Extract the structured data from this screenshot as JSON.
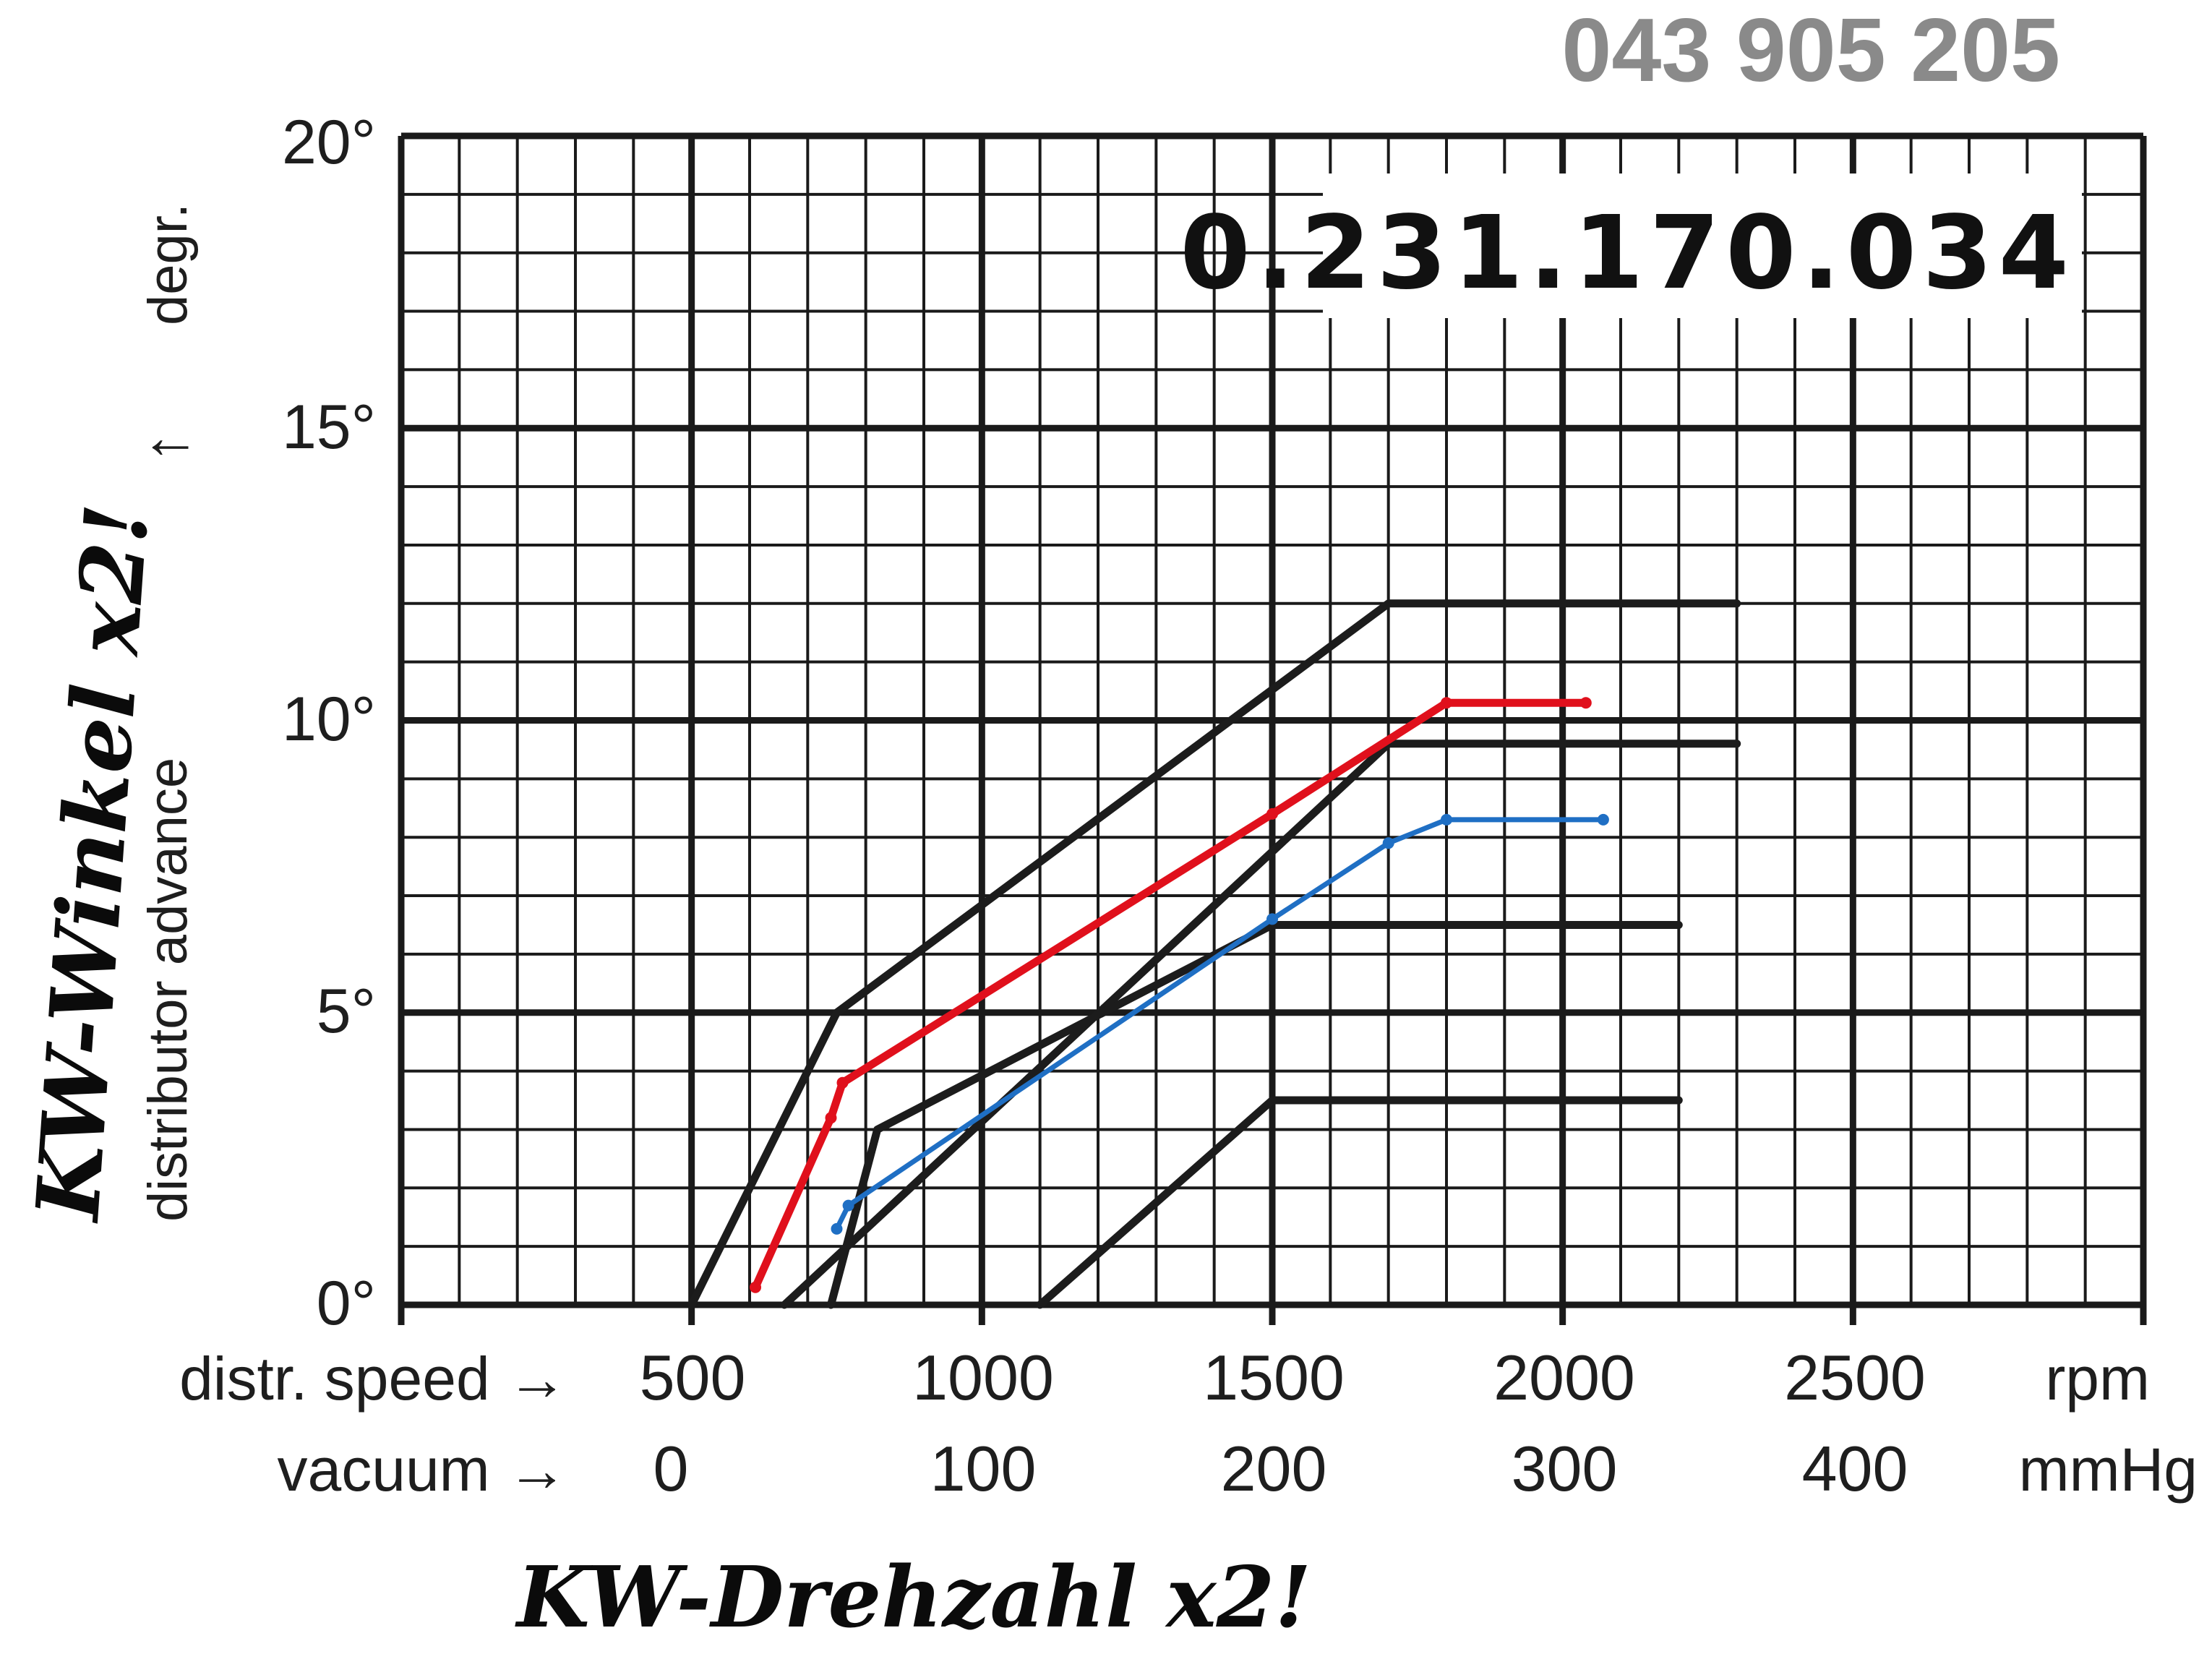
{
  "header": {
    "part_number": "043 905 205",
    "spec_number": "0.231.170.034"
  },
  "axes": {
    "y_unit_label": "degr.",
    "y_arrow": "↑",
    "y_title": "distributor advance",
    "y_ticks": [
      "0°",
      "5°",
      "10°",
      "15°",
      "20°"
    ],
    "x_row1_label": "distr. speed →",
    "x_row1_ticks": [
      "500",
      "1000",
      "1500",
      "2000",
      "2500"
    ],
    "x_row1_unit": "rpm",
    "x_row2_label": "vacuum →",
    "x_row2_ticks": [
      "0",
      "100",
      "200",
      "300",
      "400"
    ],
    "x_row2_unit": "mmHg"
  },
  "annotations": {
    "left_handwritten": "KW-Winkel x2!",
    "bottom_handwritten": "KW-Drehzahl x2!"
  },
  "colors": {
    "grid": "#1a1a1a",
    "tolerance_lines": "#1c1c1c",
    "red_curve": "#e0101c",
    "blue_curve": "#1f6fc4",
    "part_number_grey": "#8a8a8a"
  },
  "chart_data": {
    "type": "line",
    "x_unit": "rpm",
    "y_unit": "degr.",
    "xlim": [
      0,
      3000
    ],
    "ylim": [
      0,
      20
    ],
    "grid": true,
    "series": [
      {
        "color": "#1c1c1c",
        "points": [
          [
            500,
            0
          ],
          [
            750,
            5
          ],
          [
            1700,
            12
          ],
          [
            2300,
            12
          ]
        ]
      },
      {
        "color": "#1c1c1c",
        "points": [
          [
            660,
            0
          ],
          [
            1700,
            9.6
          ],
          [
            2300,
            9.6
          ]
        ]
      },
      {
        "color": "#1c1c1c",
        "points": [
          [
            740,
            0
          ],
          [
            820,
            3
          ],
          [
            1500,
            6.5
          ],
          [
            2200,
            6.5
          ]
        ]
      },
      {
        "color": "#1c1c1c",
        "points": [
          [
            1100,
            0
          ],
          [
            1500,
            3.5
          ],
          [
            2200,
            3.5
          ]
        ]
      },
      {
        "color": "#e0101c",
        "points": [
          [
            610,
            0.3
          ],
          [
            740,
            3.2
          ],
          [
            760,
            3.8
          ],
          [
            1500,
            8.4
          ],
          [
            1800,
            10.3
          ],
          [
            2040,
            10.3
          ]
        ]
      },
      {
        "color": "#1f6fc4",
        "points": [
          [
            750,
            1.3
          ],
          [
            770,
            1.7
          ],
          [
            1500,
            6.6
          ],
          [
            1700,
            7.9
          ],
          [
            1800,
            8.3
          ],
          [
            2070,
            8.3
          ]
        ]
      }
    ]
  }
}
